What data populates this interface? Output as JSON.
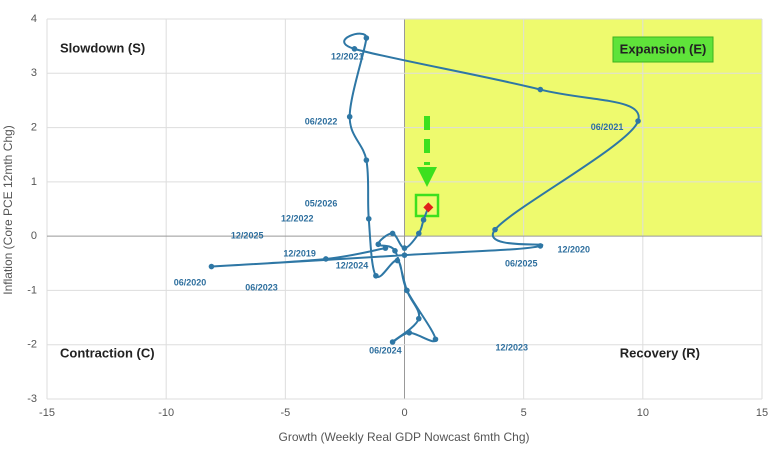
{
  "chart_data": {
    "type": "line",
    "x_label": "Growth (Weekly Real GDP Nowcast 6mth Chg)",
    "y_label": "Inflation (Core PCE 12mth Chg)",
    "xlim": [
      -15,
      15
    ],
    "xticks": [
      -15,
      -10,
      -5,
      0,
      5,
      10,
      15
    ],
    "ylim": [
      -3,
      4
    ],
    "yticks": [
      -3,
      -2,
      -1,
      0,
      1,
      2,
      3,
      4
    ],
    "grid": true,
    "quadrants": {
      "top_left": "Slowdown (S)",
      "top_right": "Expansion (E)",
      "bottom_left": "Contraction (C)",
      "bottom_right": "Recovery (R)"
    },
    "series": [
      {
        "color": "#2e77a5",
        "x": [
          -0.8,
          -3.3,
          -8.1,
          0.0,
          5.7,
          3.8,
          9.8,
          5.7,
          -2.1,
          -1.6,
          -2.3,
          -1.6,
          -1.5,
          -1.2,
          -0.3,
          0.1,
          1.3,
          0.2,
          -0.5,
          0.6,
          0.1,
          -0.4,
          -1.1,
          -0.5,
          0.0,
          0.6,
          0.8,
          1.0
        ],
        "values": [
          -0.22,
          -0.42,
          -0.56,
          -0.35,
          -0.18,
          0.12,
          2.12,
          2.7,
          3.45,
          3.65,
          2.2,
          1.4,
          0.32,
          -0.73,
          -0.45,
          -1.0,
          -1.9,
          -1.78,
          -1.95,
          -1.52,
          -1.0,
          -0.27,
          -0.15,
          0.05,
          -0.22,
          0.05,
          0.3,
          0.53
        ]
      }
    ],
    "current_color": "#e0201b",
    "annotations": [
      {
        "text": "12/2021",
        "x": -2.4,
        "y": 3.3
      },
      {
        "text": "06/2022",
        "x": -3.5,
        "y": 2.1
      },
      {
        "text": "06/2021",
        "x": 8.5,
        "y": 2.0
      },
      {
        "text": "05/2026",
        "x": -3.5,
        "y": 0.59
      },
      {
        "text": "12/2022",
        "x": -4.5,
        "y": 0.31
      },
      {
        "text": "12/2025",
        "x": -6.6,
        "y": 0.0
      },
      {
        "text": "12/2019",
        "x": -4.4,
        "y": -0.33
      },
      {
        "text": "12/2020",
        "x": 7.1,
        "y": -0.26
      },
      {
        "text": "12/2024",
        "x": -2.2,
        "y": -0.55
      },
      {
        "text": "06/2025",
        "x": 4.9,
        "y": -0.52
      },
      {
        "text": "06/2020",
        "x": -9.0,
        "y": -0.87
      },
      {
        "text": "06/2023",
        "x": -6.0,
        "y": -0.96
      },
      {
        "text": "06/2024",
        "x": -0.8,
        "y": -2.12
      },
      {
        "text": "12/2023",
        "x": 4.5,
        "y": -2.06
      }
    ]
  }
}
